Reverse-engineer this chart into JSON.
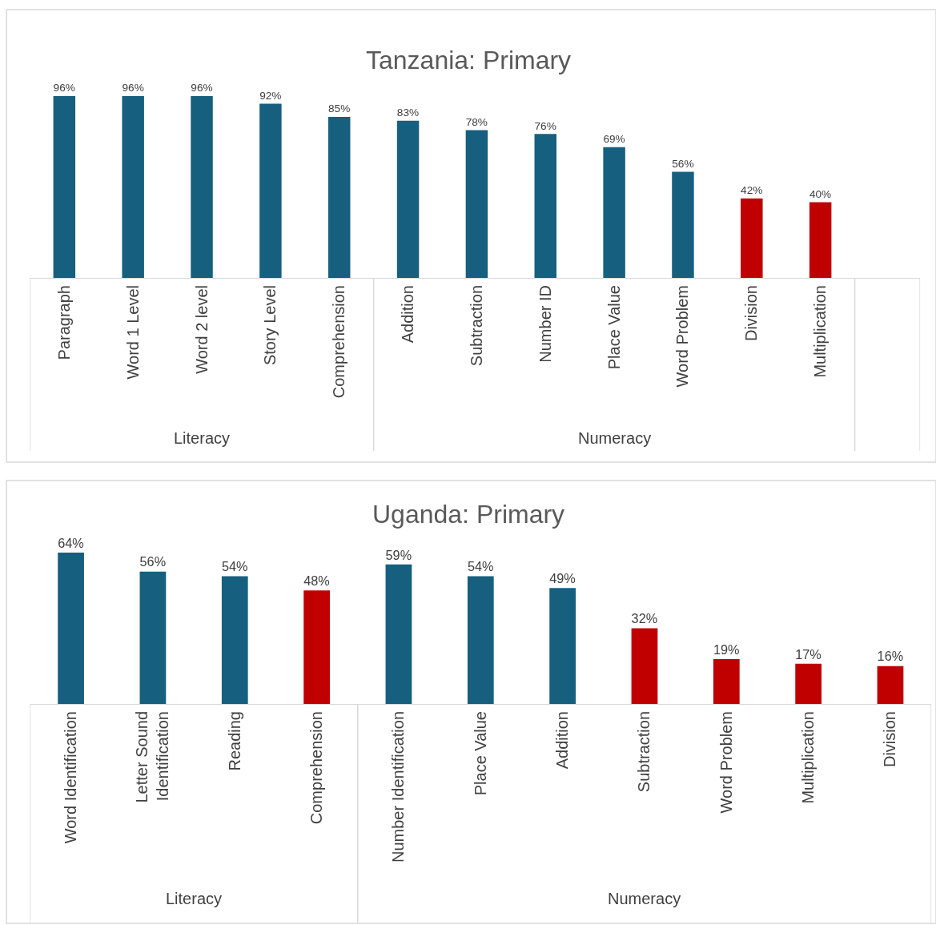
{
  "chart_data": [
    {
      "type": "bar",
      "title": "Tanzania: Primary",
      "categories": [
        "Paragraph",
        "Word 1 Level",
        "Word 2 level",
        "Story Level",
        "Comprehension",
        "Addition",
        "Subtraction",
        "Number ID",
        "Place Value",
        "Word Problem",
        "Division",
        "Multiplication"
      ],
      "values": [
        96,
        96,
        96,
        92,
        85,
        83,
        78,
        76,
        69,
        56,
        42,
        40
      ],
      "colors": [
        "#175f7f",
        "#175f7f",
        "#175f7f",
        "#175f7f",
        "#175f7f",
        "#175f7f",
        "#175f7f",
        "#175f7f",
        "#175f7f",
        "#175f7f",
        "#c00000",
        "#c00000"
      ],
      "value_labels": [
        "96%",
        "96%",
        "96%",
        "92%",
        "85%",
        "83%",
        "78%",
        "76%",
        "69%",
        "56%",
        "42%",
        "40%"
      ],
      "annotations": [
        "Literacy",
        "Numeracy"
      ]
    },
    {
      "type": "bar",
      "title": "Uganda: Primary",
      "categories": [
        "Word Identification",
        "Letter Sound Identification",
        "Reading",
        "Comprehension",
        "Number Identification",
        "Place Value",
        "Addition",
        "Subtraction",
        "Word Problem",
        "Multiplication",
        "Division"
      ],
      "values": [
        64,
        56,
        54,
        48,
        59,
        54,
        49,
        32,
        19,
        17,
        16
      ],
      "colors": [
        "#175f7f",
        "#175f7f",
        "#175f7f",
        "#c00000",
        "#175f7f",
        "#175f7f",
        "#175f7f",
        "#c00000",
        "#c00000",
        "#c00000",
        "#c00000"
      ],
      "value_labels": [
        "64%",
        "56%",
        "54%",
        "48%",
        "59%",
        "54%",
        "49%",
        "32%",
        "19%",
        "17%",
        "16%"
      ],
      "annotations": [
        "Literacy",
        "Numeracy"
      ]
    }
  ]
}
